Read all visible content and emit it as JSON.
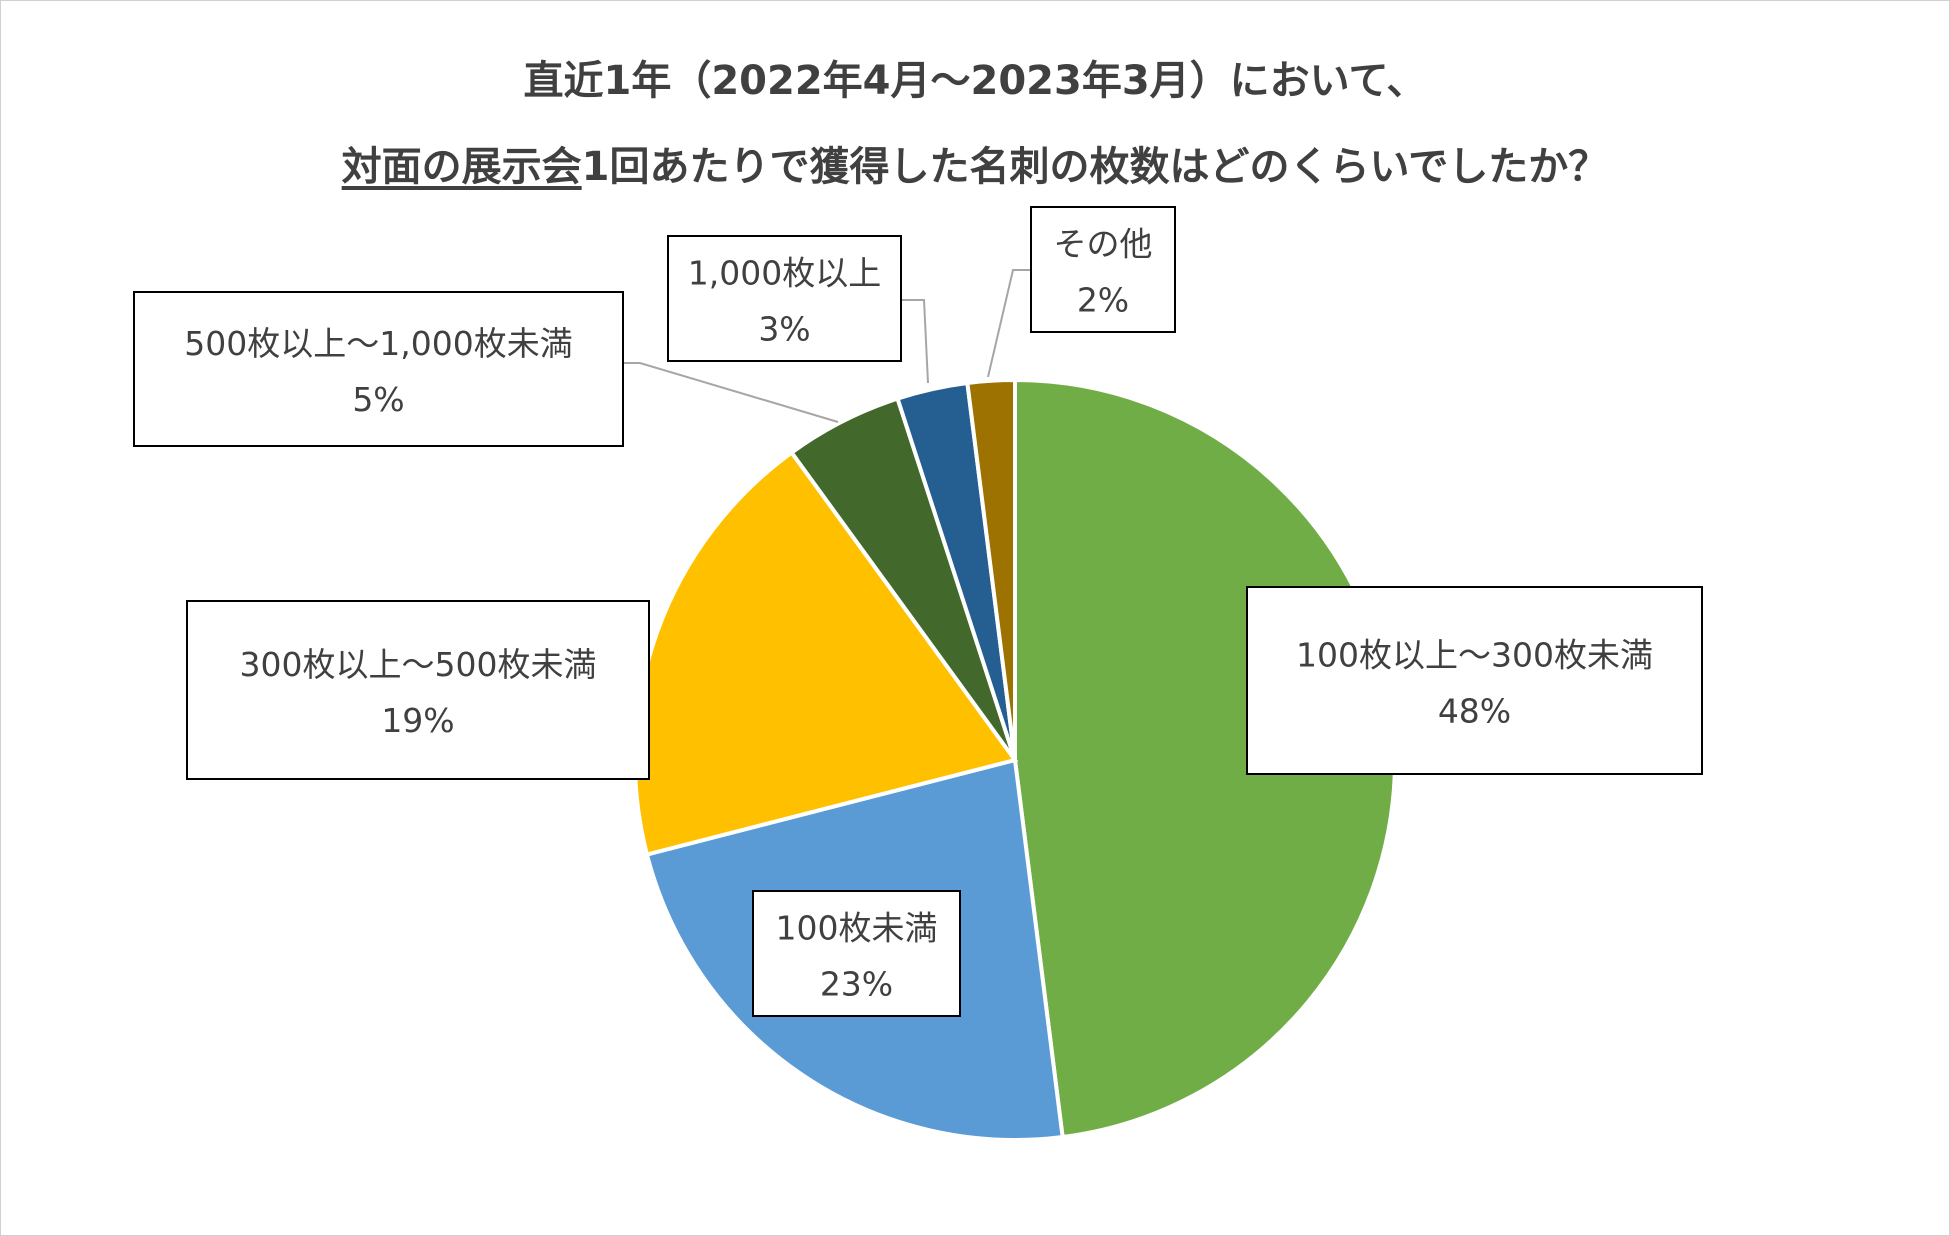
{
  "chart_data": {
    "type": "pie",
    "title_line1": "直近1年（2022年4月～2023年3月）において、",
    "title_line2_underlined": "対面の展示会",
    "title_line2_rest": "1回あたりで獲得した名刺の枚数はどのくらいでしたか？",
    "slices": [
      {
        "label": "100枚以上～300枚未満",
        "value": 48,
        "value_label": "48%",
        "color": "#70AD47"
      },
      {
        "label": "100枚未満",
        "value": 23,
        "value_label": "23%",
        "color": "#5B9BD5"
      },
      {
        "label": "300枚以上～500枚未満",
        "value": 19,
        "value_label": "19%",
        "color": "#FFC000"
      },
      {
        "label": "500枚以上～1,000枚未満",
        "value": 5,
        "value_label": "5%",
        "color": "#43682B"
      },
      {
        "label": "1,000枚以上",
        "value": 3,
        "value_label": "3%",
        "color": "#255E91"
      },
      {
        "label": "その他",
        "value": 2,
        "value_label": "2%",
        "color": "#9E7200"
      }
    ]
  }
}
